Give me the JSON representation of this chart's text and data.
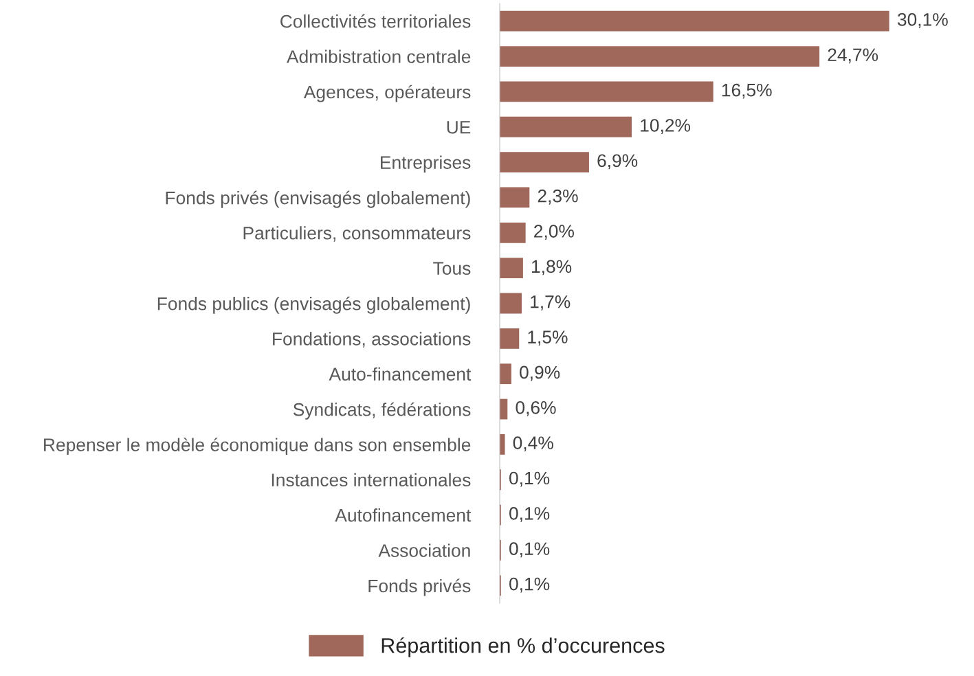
{
  "chart_data": {
    "type": "bar",
    "orientation": "horizontal",
    "categories": [
      "Collectivités territoriales",
      "Admibistration centrale",
      "Agences, opérateurs",
      "UE",
      "Entreprises",
      "Fonds privés (envisagés globalement)",
      "Particuliers, consommateurs",
      "Tous",
      "Fonds publics (envisagés globalement)",
      "Fondations, associations",
      "Auto-financement",
      "Syndicats, fédérations",
      "Repenser le modèle économique dans son ensemble",
      "Instances internationales",
      "Autofinancement",
      "Association",
      "Fonds privés"
    ],
    "series": [
      {
        "name": "Répartition en % d’occurences",
        "color": "#a0685a",
        "values": [
          30.1,
          24.7,
          16.5,
          10.2,
          6.9,
          2.3,
          2.0,
          1.8,
          1.7,
          1.5,
          0.9,
          0.6,
          0.4,
          0.1,
          0.1,
          0.1,
          0.1
        ],
        "value_labels": [
          "30,1%",
          "24,7%",
          "16,5%",
          "10,2%",
          "6,9%",
          "2,3%",
          "2,0%",
          "1,8%",
          "1,7%",
          "1,5%",
          "0,9%",
          "0,6%",
          "0,4%",
          "0,1%",
          "0,1%",
          "0,1%",
          "0,1%"
        ]
      }
    ],
    "legend": "bottom",
    "grid": false
  }
}
